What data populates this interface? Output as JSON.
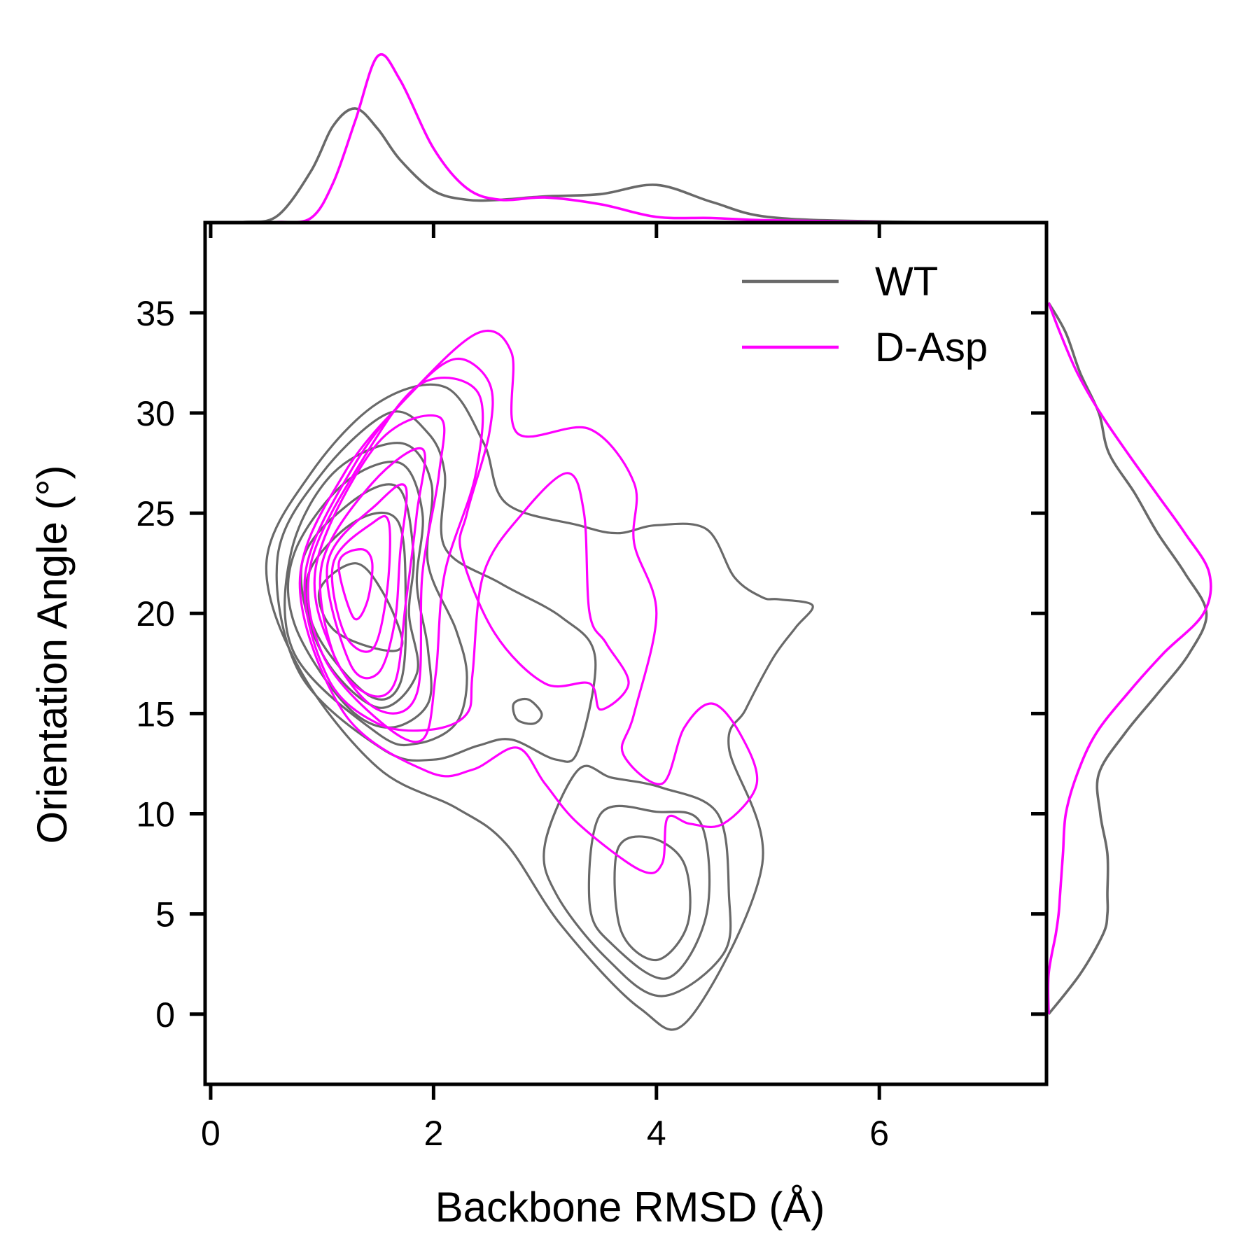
{
  "chart_data": {
    "type": "kde-joint",
    "xlabel": "Backbone RMSD (Å)",
    "ylabel": "Orientation Angle (°)",
    "xlim": [
      -0.05,
      7.5
    ],
    "ylim": [
      -3.5,
      39.5
    ],
    "xticks": [
      0,
      2,
      4,
      6
    ],
    "yticks": [
      0,
      5,
      10,
      15,
      20,
      25,
      30,
      35
    ],
    "legend_placement": "top-right",
    "grid": false,
    "series": [
      {
        "name": "WT",
        "color": "#696969",
        "contours": [
          [
            [
              0.5,
              22.5
            ],
            [
              0.9,
              27
            ],
            [
              1.5,
              30.5
            ],
            [
              2.1,
              31.3
            ],
            [
              2.45,
              28.5
            ],
            [
              2.65,
              25.5
            ],
            [
              3.3,
              24.4
            ],
            [
              3.65,
              24
            ],
            [
              4,
              24.4
            ],
            [
              4.45,
              24.2
            ],
            [
              4.7,
              21.8
            ],
            [
              4.95,
              20.8
            ],
            [
              5.1,
              20.7
            ],
            [
              5.4,
              20.4
            ],
            [
              5.25,
              19.3
            ],
            [
              5.05,
              17.8
            ],
            [
              4.8,
              15.2
            ],
            [
              4.65,
              13.3
            ],
            [
              4.95,
              7.5
            ],
            [
              4.3,
              -0.2
            ],
            [
              3.85,
              0.3
            ],
            [
              3.15,
              4.4
            ],
            [
              2.65,
              8.5
            ],
            [
              2.2,
              10.3
            ],
            [
              1.5,
              12.3
            ],
            [
              0.8,
              17.2
            ],
            [
              0.5,
              22.5
            ]
          ],
          [
            [
              0.6,
              22.8
            ],
            [
              1,
              27
            ],
            [
              1.6,
              30
            ],
            [
              1.95,
              29
            ],
            [
              2.1,
              27
            ],
            [
              2.1,
              23.3
            ],
            [
              2.6,
              21.5
            ],
            [
              3.15,
              19.8
            ],
            [
              3.45,
              17.8
            ],
            [
              3.3,
              13.2
            ],
            [
              3.1,
              12.7
            ],
            [
              2.7,
              13.7
            ],
            [
              2.4,
              13.4
            ],
            [
              2,
              12.7
            ],
            [
              1.55,
              13.2
            ],
            [
              0.8,
              17
            ],
            [
              0.6,
              22.8
            ]
          ],
          [
            [
              0.72,
              23
            ],
            [
              1.1,
              27
            ],
            [
              1.7,
              28.5
            ],
            [
              1.98,
              26.5
            ],
            [
              1.95,
              22.5
            ],
            [
              2.2,
              19.2
            ],
            [
              2.3,
              16.8
            ],
            [
              2.2,
              14.5
            ],
            [
              1.85,
              13.5
            ],
            [
              1.5,
              14
            ],
            [
              0.75,
              18
            ],
            [
              0.72,
              23
            ]
          ],
          [
            [
              0.75,
              23
            ],
            [
              1.2,
              26.5
            ],
            [
              1.7,
              27.5
            ],
            [
              1.9,
              25
            ],
            [
              1.85,
              21.5
            ],
            [
              1.95,
              18.2
            ],
            [
              1.95,
              15.5
            ],
            [
              1.6,
              14.3
            ],
            [
              1.2,
              15.5
            ],
            [
              0.75,
              19.5
            ],
            [
              0.75,
              23
            ]
          ],
          [
            [
              0.82,
              22.5
            ],
            [
              1.25,
              25.5
            ],
            [
              1.68,
              26.3
            ],
            [
              1.82,
              23
            ],
            [
              1.78,
              20
            ],
            [
              1.85,
              17
            ],
            [
              1.5,
              15.3
            ],
            [
              1,
              18
            ],
            [
              0.82,
              22.5
            ]
          ],
          [
            [
              0.88,
              22
            ],
            [
              1.3,
              24.6
            ],
            [
              1.68,
              24.6
            ],
            [
              1.75,
              20.5
            ],
            [
              1.7,
              16.5
            ],
            [
              1.42,
              15.9
            ],
            [
              0.95,
              19
            ],
            [
              0.88,
              22
            ]
          ],
          [
            [
              0.98,
              21.2
            ],
            [
              1.3,
              22.5
            ],
            [
              1.55,
              21
            ],
            [
              1.72,
              18.5
            ],
            [
              1.52,
              18.2
            ],
            [
              1.1,
              19.2
            ],
            [
              0.98,
              21.2
            ]
          ],
          [
            [
              2.72,
              15.5
            ],
            [
              2.85,
              15.7
            ],
            [
              2.97,
              15
            ],
            [
              2.9,
              14.5
            ],
            [
              2.75,
              14.7
            ],
            [
              2.72,
              15.5
            ]
          ],
          [
            [
              3.3,
              12.2
            ],
            [
              3.6,
              11.8
            ],
            [
              4.05,
              11.3
            ],
            [
              4.55,
              10
            ],
            [
              4.65,
              6
            ],
            [
              4.6,
              3
            ],
            [
              4.05,
              0.9
            ],
            [
              3.55,
              2.8
            ],
            [
              3.1,
              6
            ],
            [
              3,
              8.5
            ],
            [
              3.3,
              12.2
            ]
          ],
          [
            [
              3.5,
              10
            ],
            [
              4,
              10.1
            ],
            [
              4.4,
              9.5
            ],
            [
              4.45,
              5
            ],
            [
              4.1,
              1.8
            ],
            [
              3.6,
              3.5
            ],
            [
              3.4,
              5.5
            ],
            [
              3.5,
              10
            ]
          ],
          [
            [
              3.65,
              8.2
            ],
            [
              3.95,
              8.8
            ],
            [
              4.25,
              7.5
            ],
            [
              4.28,
              4.5
            ],
            [
              4,
              2.7
            ],
            [
              3.68,
              4.2
            ],
            [
              3.65,
              8.2
            ]
          ]
        ]
      },
      {
        "name": "D-Asp",
        "color": "#ff00ff",
        "contours": [
          [
            [
              0.8,
              21.5
            ],
            [
              1.2,
              27
            ],
            [
              1.8,
              31
            ],
            [
              2.4,
              34
            ],
            [
              2.7,
              33
            ],
            [
              2.75,
              29
            ],
            [
              3.4,
              29.2
            ],
            [
              3.8,
              26.5
            ],
            [
              3.8,
              23.5
            ],
            [
              4,
              20
            ],
            [
              3.8,
              15
            ],
            [
              3.7,
              13
            ],
            [
              4.05,
              11.5
            ],
            [
              4.25,
              14.3
            ],
            [
              4.5,
              15.5
            ],
            [
              4.75,
              14
            ],
            [
              4.9,
              11.5
            ],
            [
              4.6,
              9.5
            ],
            [
              4.3,
              9.5
            ],
            [
              4.1,
              9.8
            ],
            [
              4.05,
              7.5
            ],
            [
              3.85,
              7.2
            ],
            [
              3.3,
              9.5
            ],
            [
              3,
              11.5
            ],
            [
              2.75,
              13.3
            ],
            [
              2.35,
              12.2
            ],
            [
              1.95,
              12.1
            ],
            [
              1.2,
              15
            ],
            [
              0.8,
              21.5
            ]
          ],
          [
            [
              0.85,
              22
            ],
            [
              1.3,
              27.5
            ],
            [
              1.8,
              31
            ],
            [
              2.2,
              32.7
            ],
            [
              2.5,
              31.5
            ],
            [
              2.5,
              29
            ],
            [
              2.3,
              25
            ],
            [
              2.25,
              23
            ],
            [
              2.55,
              19
            ],
            [
              3,
              16.5
            ],
            [
              3.4,
              16.5
            ],
            [
              3.5,
              15.2
            ],
            [
              3.75,
              16.5
            ],
            [
              3.55,
              18.5
            ],
            [
              3.4,
              20
            ],
            [
              3.35,
              25
            ],
            [
              3.2,
              27
            ],
            [
              2.8,
              25
            ],
            [
              2.45,
              22
            ],
            [
              2.35,
              17
            ],
            [
              2.3,
              15
            ],
            [
              1.98,
              14.2
            ],
            [
              1.5,
              14.5
            ],
            [
              1.05,
              16.8
            ],
            [
              0.85,
              22
            ]
          ],
          [
            [
              0.9,
              22.5
            ],
            [
              1.4,
              28
            ],
            [
              1.9,
              31.5
            ],
            [
              2.4,
              31
            ],
            [
              2.38,
              27
            ],
            [
              2.1,
              22
            ],
            [
              2.02,
              17
            ],
            [
              1.9,
              13.7
            ],
            [
              1.5,
              14.7
            ],
            [
              1,
              18
            ],
            [
              0.9,
              22.5
            ]
          ],
          [
            [
              0.95,
              22.5
            ],
            [
              1.5,
              28.5
            ],
            [
              2.05,
              29.8
            ],
            [
              2.05,
              27
            ],
            [
              1.9,
              22
            ],
            [
              1.85,
              16
            ],
            [
              1.5,
              15.2
            ],
            [
              1.1,
              18
            ],
            [
              0.95,
              22.5
            ]
          ],
          [
            [
              1,
              22.5
            ],
            [
              1.45,
              26.5
            ],
            [
              1.9,
              28.2
            ],
            [
              1.85,
              25
            ],
            [
              1.75,
              20.5
            ],
            [
              1.65,
              16.5
            ],
            [
              1.4,
              16
            ],
            [
              1.1,
              18
            ],
            [
              1,
              22.5
            ]
          ],
          [
            [
              1.05,
              22.5
            ],
            [
              1.5,
              25.5
            ],
            [
              1.75,
              26.3
            ],
            [
              1.7,
              23
            ],
            [
              1.65,
              19.5
            ],
            [
              1.5,
              17
            ],
            [
              1.25,
              17.5
            ],
            [
              1.05,
              22.5
            ]
          ],
          [
            [
              1.1,
              22.5
            ],
            [
              1.45,
              24.5
            ],
            [
              1.6,
              24.5
            ],
            [
              1.58,
              21
            ],
            [
              1.45,
              18.2
            ],
            [
              1.2,
              19
            ],
            [
              1.1,
              22.5
            ]
          ],
          [
            [
              1.15,
              22.5
            ],
            [
              1.35,
              23.2
            ],
            [
              1.45,
              22.5
            ],
            [
              1.4,
              20.5
            ],
            [
              1.28,
              19.8
            ],
            [
              1.15,
              22.5
            ]
          ]
        ]
      }
    ],
    "marginal_x": {
      "x": [
        -0.05,
        0.3,
        0.6,
        0.9,
        1.1,
        1.3,
        1.5,
        1.7,
        2.0,
        2.3,
        2.6,
        3.0,
        3.5,
        4.0,
        4.5,
        5.0,
        6.0,
        7.5
      ],
      "series": [
        {
          "name": "WT",
          "density": [
            0.0,
            0.005,
            0.06,
            0.45,
            0.85,
            1.0,
            0.82,
            0.55,
            0.28,
            0.2,
            0.2,
            0.23,
            0.25,
            0.33,
            0.18,
            0.05,
            0.01,
            0.0
          ]
        },
        {
          "name": "D-Asp",
          "density": [
            0.0,
            0.0,
            0.005,
            0.04,
            0.35,
            0.9,
            1.46,
            1.25,
            0.65,
            0.3,
            0.2,
            0.22,
            0.16,
            0.05,
            0.04,
            0.02,
            0.005,
            0.0
          ]
        }
      ]
    },
    "marginal_y": {
      "y": [
        0,
        2,
        4,
        5,
        6,
        8,
        10,
        12,
        14,
        16,
        18,
        20,
        22,
        24,
        26,
        28,
        30,
        32,
        34,
        35.5
      ],
      "series": [
        {
          "name": "WT",
          "density": [
            0.0,
            0.22,
            0.38,
            0.41,
            0.41,
            0.41,
            0.36,
            0.35,
            0.53,
            0.76,
            0.98,
            1.1,
            0.95,
            0.76,
            0.6,
            0.42,
            0.35,
            0.22,
            0.12,
            0.0
          ]
        },
        {
          "name": "D-Asp",
          "density": [
            0.0,
            0.0,
            0.05,
            0.07,
            0.08,
            0.1,
            0.12,
            0.2,
            0.33,
            0.55,
            0.8,
            1.08,
            1.12,
            0.95,
            0.75,
            0.55,
            0.36,
            0.2,
            0.08,
            0.0
          ]
        }
      ]
    }
  }
}
